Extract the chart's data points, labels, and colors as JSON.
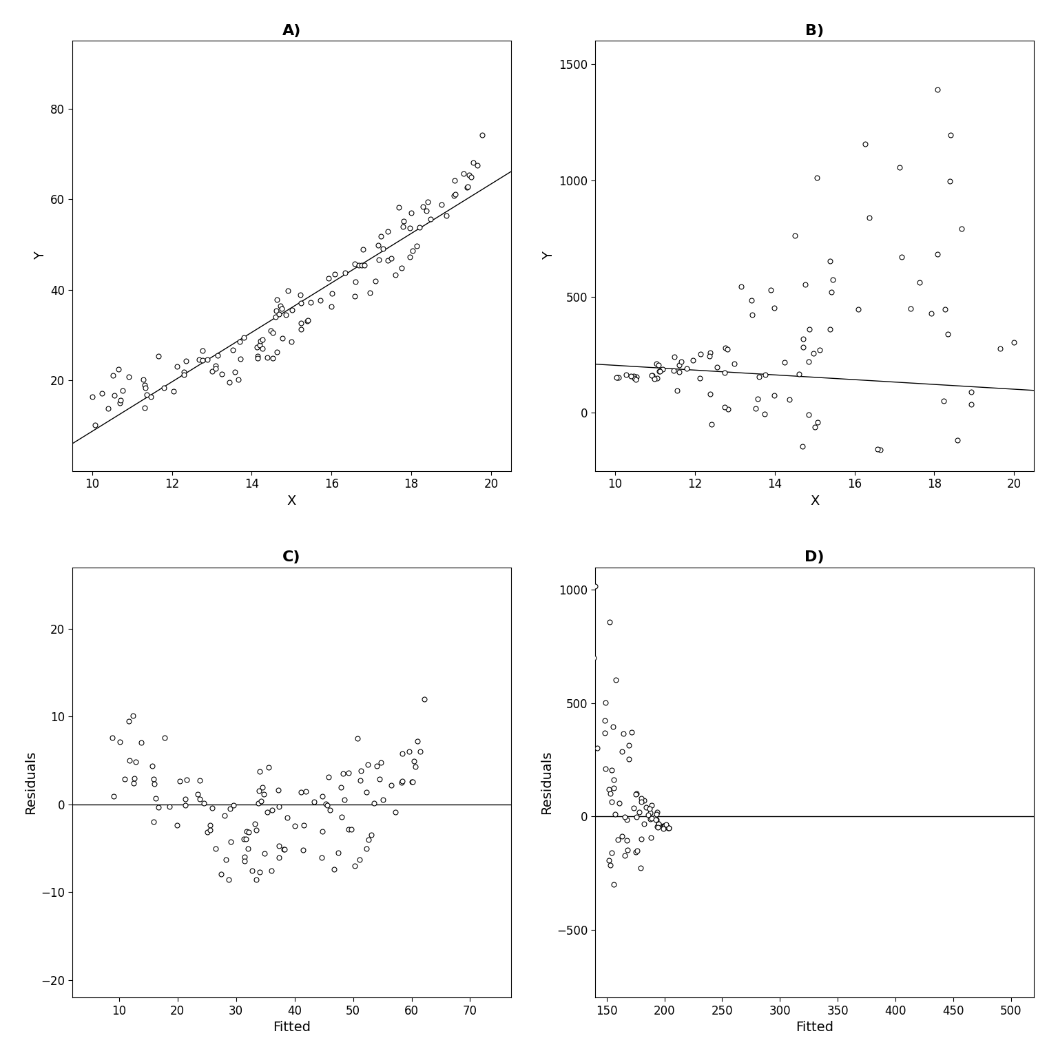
{
  "n_points": 120,
  "panel_titles": [
    "A)",
    "B)",
    "C)",
    "D)"
  ],
  "xlabel_top": "X",
  "ylabel_top": "Y",
  "xlabel_bottom": "Fitted",
  "ylabel_bottom": "Residuals",
  "bg_color": "#ffffff",
  "line_color": "#000000",
  "marker_color": "#ffffff",
  "marker_edge_color": "#000000",
  "marker_size": 5,
  "line_width": 1.0,
  "title_fontsize": 16,
  "label_fontsize": 14,
  "tick_fontsize": 12,
  "title_fontweight": "bold",
  "panel_A_xlim": [
    9.5,
    20.5
  ],
  "panel_A_ylim": [
    0,
    95
  ],
  "panel_A_xticks": [
    10,
    12,
    14,
    16,
    18,
    20
  ],
  "panel_A_yticks": [
    20,
    40,
    60,
    80
  ],
  "panel_B_xlim": [
    9.5,
    20.5
  ],
  "panel_B_ylim": [
    -250,
    1600
  ],
  "panel_B_xticks": [
    10,
    12,
    14,
    16,
    18,
    20
  ],
  "panel_B_yticks": [
    0,
    500,
    1000,
    1500
  ],
  "panel_C_xlim": [
    2,
    77
  ],
  "panel_C_ylim": [
    -22,
    27
  ],
  "panel_C_xticks": [
    10,
    20,
    30,
    40,
    50,
    60,
    70
  ],
  "panel_C_yticks": [
    -20,
    -10,
    0,
    10,
    20
  ],
  "panel_D_xlim": [
    140,
    520
  ],
  "panel_D_ylim": [
    -800,
    1100
  ],
  "panel_D_xticks": [
    150,
    200,
    250,
    300,
    350,
    400,
    450,
    500
  ],
  "panel_D_yticks": [
    -500,
    0,
    500,
    1000
  ]
}
